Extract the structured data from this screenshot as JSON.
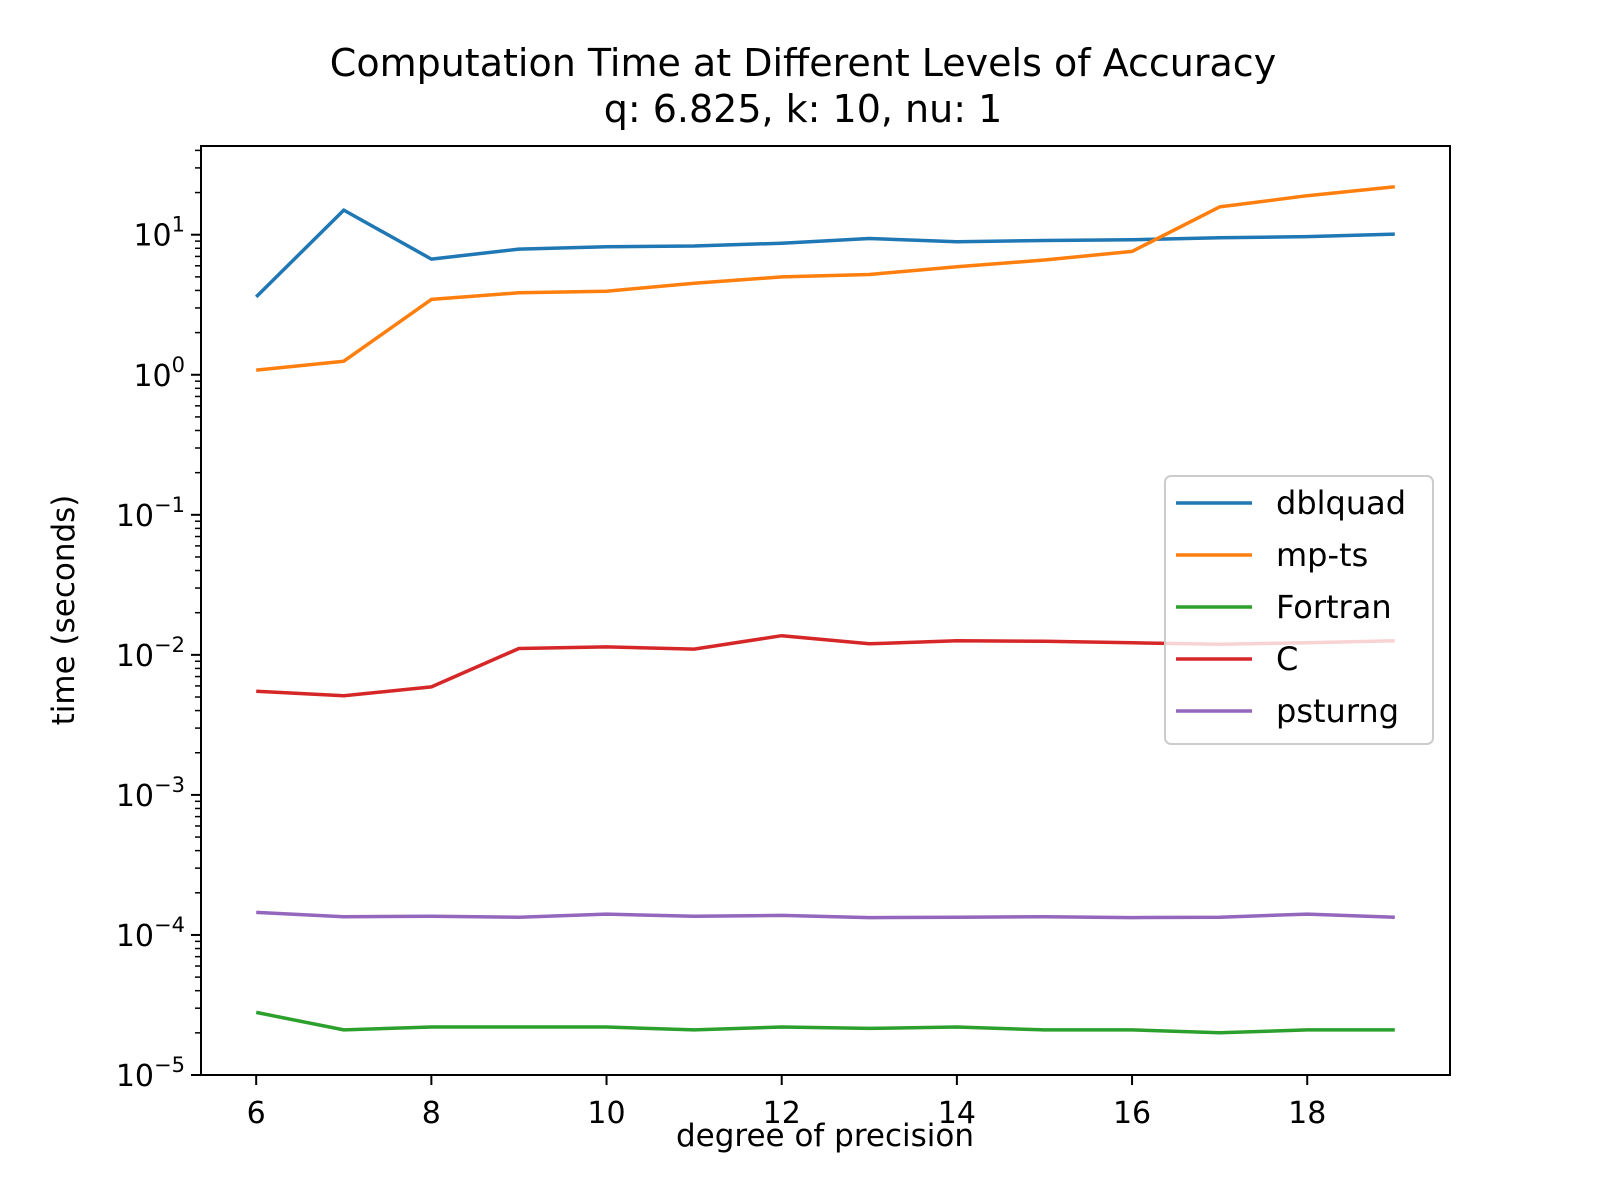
{
  "chart_data": {
    "type": "line",
    "title": "Computation Time at Different Levels of Accuracy",
    "subtitle": "q: 6.825, k: 10, nu: 1",
    "xlabel": "degree of precision",
    "ylabel": "time (seconds)",
    "xlim": [
      5.37,
      19.63
    ],
    "ylim": [
      1e-05,
      43
    ],
    "yscale": "log",
    "grid": false,
    "legend_position": "center-right",
    "x_ticks": [
      6,
      8,
      10,
      12,
      14,
      16,
      18
    ],
    "y_ticks": [
      {
        "base": "10",
        "exp": "1",
        "value": 10
      },
      {
        "base": "10",
        "exp": "0",
        "value": 1
      },
      {
        "base": "10",
        "exp": "−1",
        "value": 0.1
      },
      {
        "base": "10",
        "exp": "−2",
        "value": 0.01
      },
      {
        "base": "10",
        "exp": "−3",
        "value": 0.001
      },
      {
        "base": "10",
        "exp": "−4",
        "value": 0.0001
      },
      {
        "base": "10",
        "exp": "−5",
        "value": 1e-05
      }
    ],
    "x": [
      6,
      7,
      8,
      9,
      10,
      11,
      12,
      13,
      14,
      15,
      16,
      17,
      18,
      19
    ],
    "series": [
      {
        "name": "dblquad",
        "color": "#1f77b4",
        "values": [
          3.6,
          15.0,
          6.7,
          7.9,
          8.2,
          8.3,
          8.7,
          9.4,
          8.9,
          9.1,
          9.2,
          9.5,
          9.7,
          10.1
        ]
      },
      {
        "name": "mp-ts",
        "color": "#ff7f0e",
        "values": [
          1.08,
          1.25,
          3.45,
          3.85,
          3.95,
          4.5,
          5.0,
          5.2,
          5.9,
          6.6,
          7.6,
          15.8,
          19.0,
          22.0
        ]
      },
      {
        "name": "Fortran",
        "color": "#2ca02c",
        "values": [
          2.8e-05,
          2.1e-05,
          2.2e-05,
          2.2e-05,
          2.2e-05,
          2.1e-05,
          2.2e-05,
          2.15e-05,
          2.2e-05,
          2.1e-05,
          2.1e-05,
          2e-05,
          2.1e-05,
          2.1e-05
        ]
      },
      {
        "name": "C",
        "color": "#d62728",
        "values": [
          0.0055,
          0.0051,
          0.0059,
          0.0111,
          0.0114,
          0.011,
          0.0137,
          0.012,
          0.0126,
          0.0125,
          0.0122,
          0.0119,
          0.0122,
          0.0126
        ]
      },
      {
        "name": "psturng",
        "color": "#9467bd",
        "values": [
          0.000145,
          0.000135,
          0.000136,
          0.000134,
          0.000141,
          0.000136,
          0.000138,
          0.000133,
          0.000134,
          0.000135,
          0.000133,
          0.000134,
          0.000141,
          0.000134
        ]
      }
    ]
  }
}
